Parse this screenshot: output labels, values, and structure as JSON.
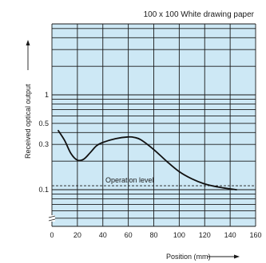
{
  "chart_data": {
    "type": "line",
    "title": "100 x 100 White drawing paper",
    "xlabel": "Position (mm)",
    "ylabel": "Received optical output",
    "xlim": [
      0,
      160
    ],
    "x_ticks": [
      "0",
      "20",
      "40",
      "60",
      "80",
      "100",
      "120",
      "140",
      "160"
    ],
    "y_scale": "log",
    "y_ticks": [
      {
        "value": 1,
        "label": "1"
      },
      {
        "value": 0.5,
        "label": "0.5"
      },
      {
        "value": 0.3,
        "label": "0.3"
      },
      {
        "value": 0.1,
        "label": "0.1"
      }
    ],
    "grid": true,
    "axis_break": true,
    "series": [
      {
        "x": [
          5,
          10,
          15,
          20,
          25,
          30,
          35,
          40,
          50,
          60,
          65,
          70,
          80,
          90,
          100,
          110,
          120,
          130,
          140,
          145
        ],
        "y": [
          0.42,
          0.33,
          0.24,
          0.205,
          0.21,
          0.245,
          0.29,
          0.315,
          0.345,
          0.36,
          0.355,
          0.335,
          0.265,
          0.2,
          0.155,
          0.13,
          0.115,
          0.107,
          0.102,
          0.1
        ]
      }
    ],
    "annotations": [
      {
        "text": "Operation level",
        "y": 0.11
      }
    ],
    "colors": {
      "plot_background": "#cde8f5",
      "grid": "#1a1a1a",
      "curve": "#111111"
    }
  }
}
